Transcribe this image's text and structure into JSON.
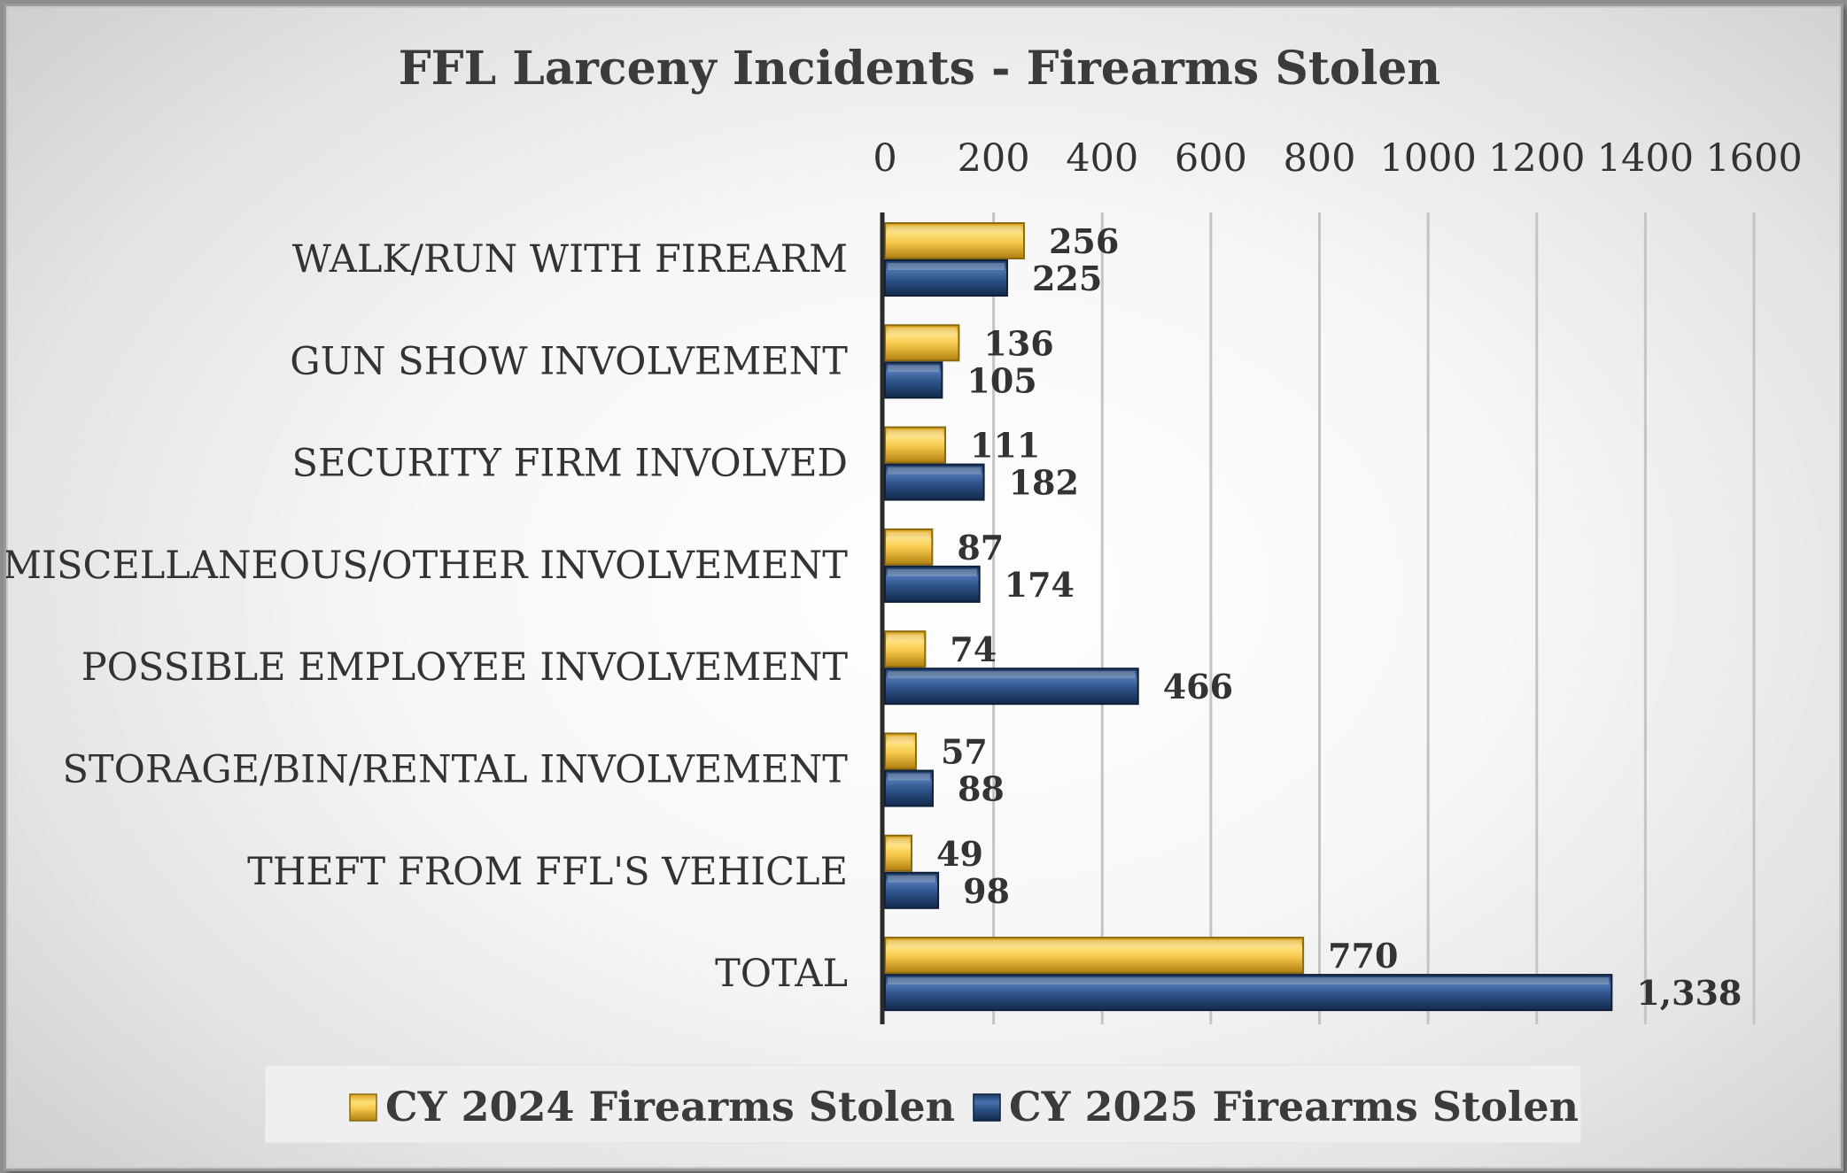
{
  "chart_data": {
    "type": "bar",
    "orientation": "horizontal",
    "title": "FFL Larceny Incidents - Firearms Stolen",
    "categories": [
      "WALK/RUN WITH FIREARM",
      "GUN SHOW INVOLVEMENT",
      "SECURITY FIRM INVOLVED",
      "MISCELLANEOUS/OTHER INVOLVEMENT",
      "POSSIBLE EMPLOYEE INVOLVEMENT",
      "STORAGE/BIN/RENTAL INVOLVEMENT",
      "THEFT FROM FFL'S VEHICLE",
      "TOTAL"
    ],
    "series": [
      {
        "name": "CY 2024 Firearms Stolen",
        "color": "#f2c23d",
        "values": [
          256,
          136,
          111,
          87,
          74,
          57,
          49,
          770
        ],
        "labels": [
          "256",
          "136",
          "111",
          "87",
          "74",
          "57",
          "49",
          "770"
        ]
      },
      {
        "name": "CY 2025 Firearms Stolen",
        "color": "#2d5289",
        "values": [
          225,
          105,
          182,
          174,
          466,
          88,
          98,
          1338
        ],
        "labels": [
          "225",
          "105",
          "182",
          "174",
          "466",
          "88",
          "98",
          "1,338"
        ]
      }
    ],
    "xlim": [
      0,
      1600
    ],
    "x_ticks": [
      "0",
      "200",
      "400",
      "600",
      "800",
      "1000",
      "1200",
      "1400",
      "1600"
    ],
    "axis_position": "top",
    "grid": true,
    "legend": "bottom"
  }
}
